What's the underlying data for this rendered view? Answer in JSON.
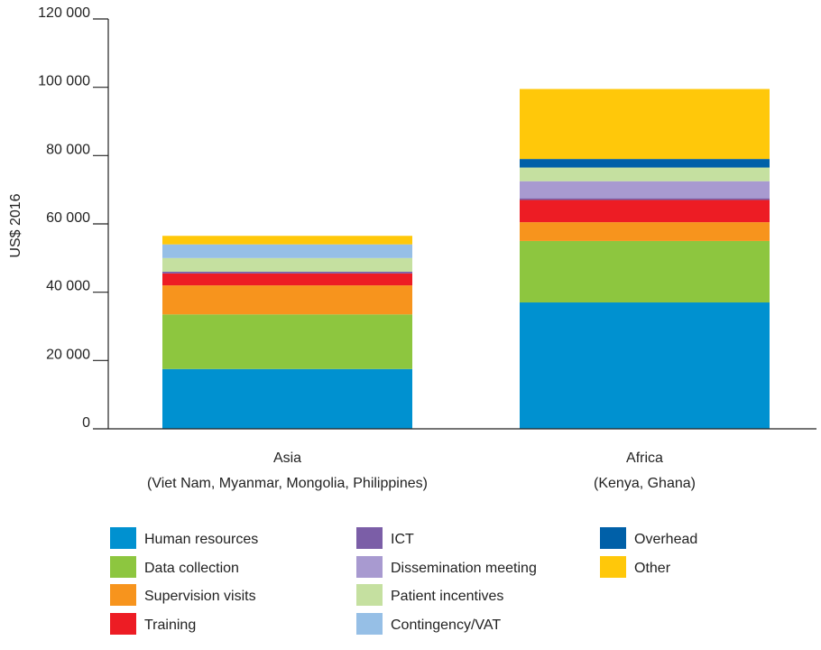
{
  "chart_data": {
    "type": "bar",
    "stacked": true,
    "title": "",
    "xlabel": "",
    "ylabel": "US$ 2016",
    "ylim": [
      0,
      120000
    ],
    "yticks": [
      {
        "value": 0,
        "label": "0"
      },
      {
        "value": 20000,
        "label": "20 000"
      },
      {
        "value": 40000,
        "label": "40 000"
      },
      {
        "value": 60000,
        "label": "60 000"
      },
      {
        "value": 80000,
        "label": "80 000"
      },
      {
        "value": 100000,
        "label": "100 000"
      },
      {
        "value": 120000,
        "label": "120 000"
      }
    ],
    "categories": [
      {
        "line1": "Asia",
        "line2": "(Viet Nam, Myanmar, Mongolia, Philippines)"
      },
      {
        "line1": "Africa",
        "line2": "(Kenya, Ghana)"
      }
    ],
    "series": [
      {
        "name": "Human resources",
        "color": "#0091d0",
        "values": [
          17500,
          37000
        ]
      },
      {
        "name": "Data collection",
        "color": "#8dc63f",
        "values": [
          16000,
          18000
        ]
      },
      {
        "name": "Supervision visits",
        "color": "#f7941d",
        "values": [
          8500,
          5500
        ]
      },
      {
        "name": "Training",
        "color": "#ed1c24",
        "values": [
          3500,
          6500
        ]
      },
      {
        "name": "ICT",
        "color": "#7b5ea7",
        "values": [
          500,
          500
        ]
      },
      {
        "name": "Dissemination meeting",
        "color": "#a89ad0",
        "values": [
          0,
          5000
        ]
      },
      {
        "name": "Patient incentives",
        "color": "#c5e0a0",
        "values": [
          4000,
          4000
        ]
      },
      {
        "name": "Contingency/VAT",
        "color": "#96bfe6",
        "values": [
          4000,
          0
        ]
      },
      {
        "name": "Overhead",
        "color": "#0060a8",
        "values": [
          0,
          2500
        ]
      },
      {
        "name": "Other",
        "color": "#ffc80a",
        "values": [
          2500,
          20500
        ]
      }
    ],
    "legend_placement": "bottom",
    "grid": false
  }
}
